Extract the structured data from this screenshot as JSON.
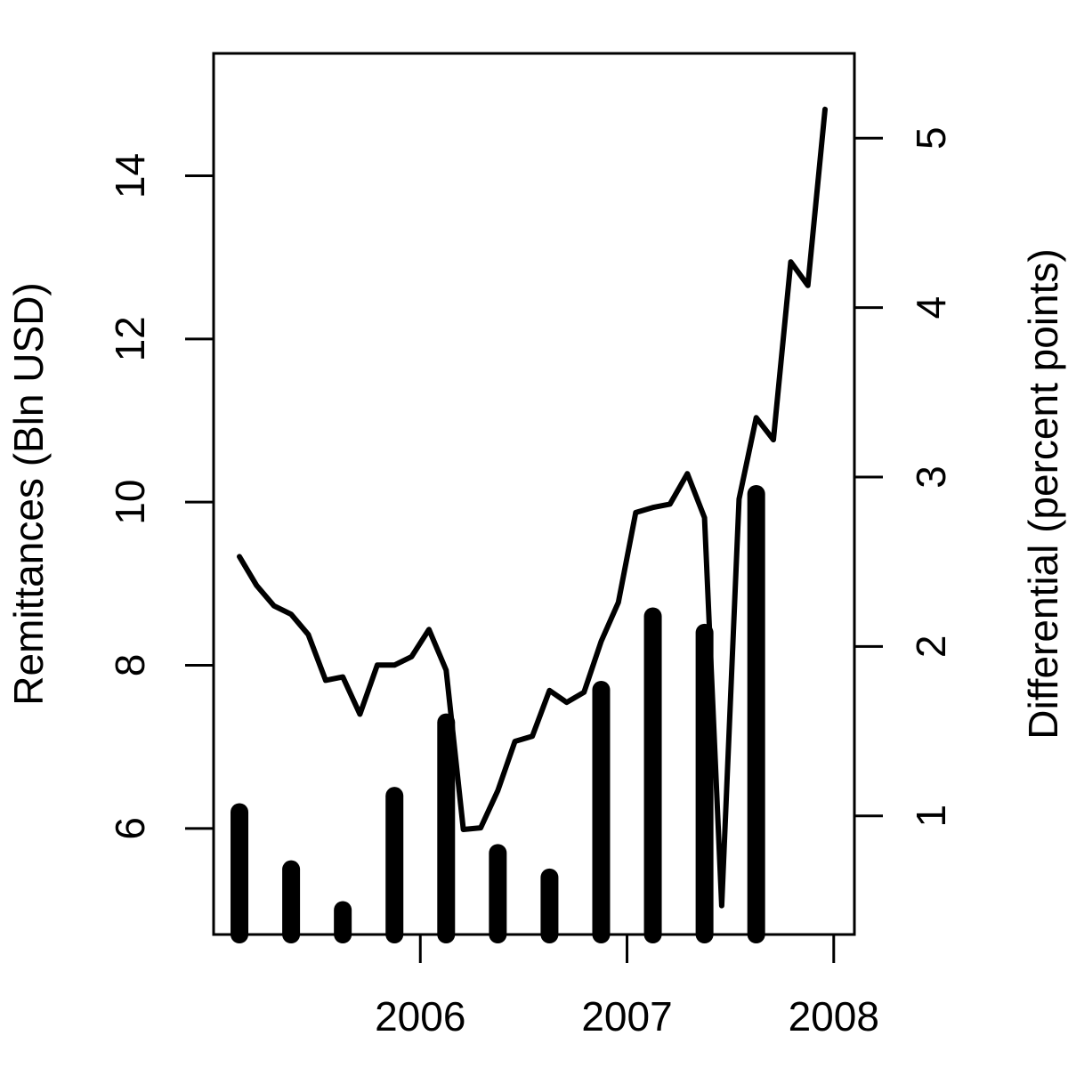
{
  "chart_data": {
    "type": "bar+line",
    "title": "",
    "xlabel": "",
    "ylabel": "Remittances (Bln USD)",
    "y2label": "Differential (percent points)",
    "colors": {
      "bars": "#000000",
      "line": "#000000"
    },
    "grid": false,
    "x_ticks": [
      {
        "value": 2006,
        "label": "2006"
      },
      {
        "value": 2007,
        "label": "2007"
      },
      {
        "value": 2008,
        "label": "2008"
      }
    ],
    "y_ticks": [
      {
        "value": 6,
        "label": "6"
      },
      {
        "value": 8,
        "label": "8"
      },
      {
        "value": 10,
        "label": "10"
      },
      {
        "value": 12,
        "label": "12"
      },
      {
        "value": 14,
        "label": "14"
      }
    ],
    "y2_ticks": [
      {
        "value": 1,
        "label": "1"
      },
      {
        "value": 2,
        "label": "2"
      },
      {
        "value": 3,
        "label": "3"
      },
      {
        "value": 4,
        "label": "4"
      },
      {
        "value": 5,
        "label": "5"
      }
    ],
    "xlim": [
      2005.0,
      2008.1
    ],
    "ylim": [
      4.7,
      15.5
    ],
    "y2lim": [
      0.3,
      5.5
    ],
    "series": [
      {
        "type": "bar",
        "axis": "left",
        "points": [
          {
            "x": 2005.125,
            "y": 6.2
          },
          {
            "x": 2005.375,
            "y": 5.5
          },
          {
            "x": 2005.625,
            "y": 5.0
          },
          {
            "x": 2005.875,
            "y": 6.4
          },
          {
            "x": 2006.125,
            "y": 7.3
          },
          {
            "x": 2006.375,
            "y": 5.7
          },
          {
            "x": 2006.625,
            "y": 5.4
          },
          {
            "x": 2006.875,
            "y": 7.7
          },
          {
            "x": 2007.125,
            "y": 8.6
          },
          {
            "x": 2007.375,
            "y": 8.4
          },
          {
            "x": 2007.625,
            "y": 10.1
          }
        ]
      },
      {
        "type": "line",
        "axis": "right",
        "points": [
          {
            "x": 2005.125,
            "y": 2.53
          },
          {
            "x": 2005.208,
            "y": 2.36
          },
          {
            "x": 2005.292,
            "y": 2.24
          },
          {
            "x": 2005.375,
            "y": 2.19
          },
          {
            "x": 2005.458,
            "y": 2.07
          },
          {
            "x": 2005.542,
            "y": 1.8
          },
          {
            "x": 2005.625,
            "y": 1.82
          },
          {
            "x": 2005.708,
            "y": 1.6
          },
          {
            "x": 2005.792,
            "y": 1.89
          },
          {
            "x": 2005.875,
            "y": 1.89
          },
          {
            "x": 2005.958,
            "y": 1.94
          },
          {
            "x": 2006.042,
            "y": 2.1
          },
          {
            "x": 2006.125,
            "y": 1.86
          },
          {
            "x": 2006.208,
            "y": 0.92
          },
          {
            "x": 2006.292,
            "y": 0.93
          },
          {
            "x": 2006.375,
            "y": 1.15
          },
          {
            "x": 2006.458,
            "y": 1.44
          },
          {
            "x": 2006.542,
            "y": 1.47
          },
          {
            "x": 2006.625,
            "y": 1.74
          },
          {
            "x": 2006.708,
            "y": 1.67
          },
          {
            "x": 2006.792,
            "y": 1.73
          },
          {
            "x": 2006.875,
            "y": 2.03
          },
          {
            "x": 2006.958,
            "y": 2.26
          },
          {
            "x": 2007.042,
            "y": 2.79
          },
          {
            "x": 2007.125,
            "y": 2.82
          },
          {
            "x": 2007.208,
            "y": 2.84
          },
          {
            "x": 2007.292,
            "y": 3.02
          },
          {
            "x": 2007.375,
            "y": 2.76
          },
          {
            "x": 2007.458,
            "y": 0.47
          },
          {
            "x": 2007.542,
            "y": 2.87
          },
          {
            "x": 2007.625,
            "y": 3.35
          },
          {
            "x": 2007.708,
            "y": 3.22
          },
          {
            "x": 2007.792,
            "y": 4.27
          },
          {
            "x": 2007.875,
            "y": 4.13
          },
          {
            "x": 2007.958,
            "y": 5.17
          }
        ]
      }
    ]
  }
}
